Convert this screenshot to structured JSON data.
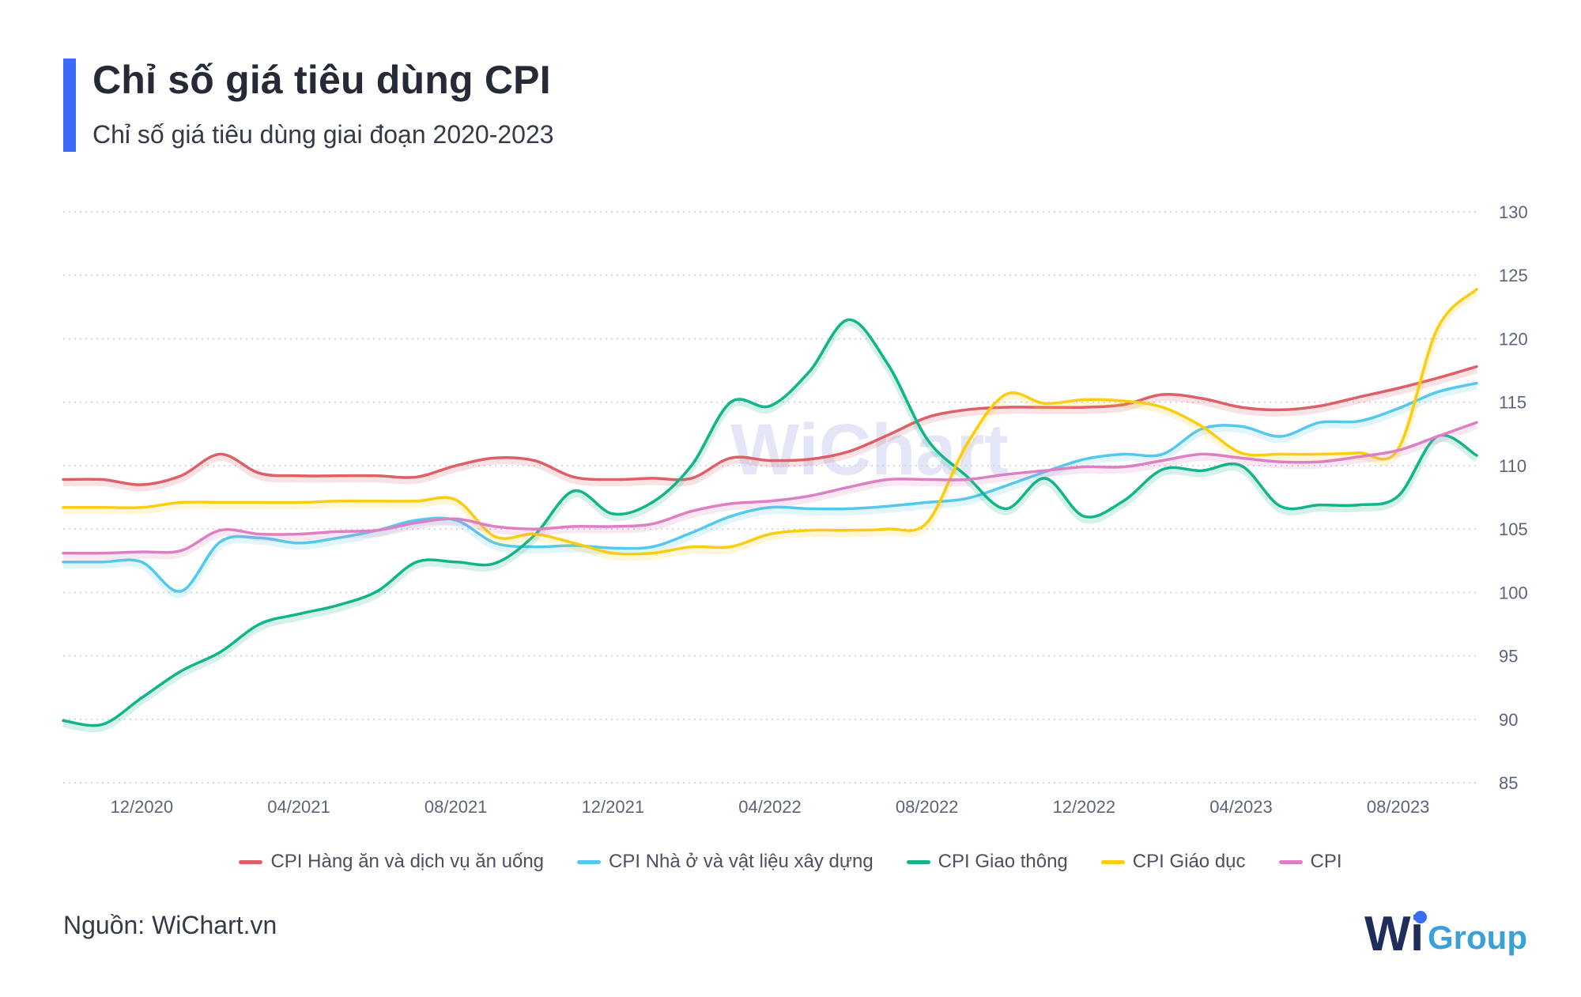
{
  "header": {
    "title": "Chỉ số giá tiêu dùng CPI",
    "subtitle": "Chỉ số giá tiêu dùng giai đoạn 2020-2023"
  },
  "footer": {
    "source": "Nguồn: WiChart.vn",
    "logo_text_a": "Wi",
    "logo_text_b": "Group",
    "watermark": "WiChart"
  },
  "colors": {
    "accent": "#3b6cf6",
    "series": [
      "#de5f66",
      "#54c8ee",
      "#12b48a",
      "#fbcd12",
      "#e07ec3"
    ],
    "grid": "#c9ccd3",
    "axis_text": "#5b6478"
  },
  "chart_data": {
    "type": "line",
    "title": "Chỉ số giá tiêu dùng CPI",
    "subtitle": "Chỉ số giá tiêu dùng giai đoạn 2020-2023",
    "xlabel": "",
    "ylabel": "",
    "y_axis_position": "right",
    "ylim": [
      85,
      130
    ],
    "yticks": [
      85,
      90,
      95,
      100,
      105,
      110,
      115,
      120,
      125,
      130
    ],
    "grid": true,
    "legend_position": "bottom",
    "x_tick_labels": [
      "12/2020",
      "04/2021",
      "08/2021",
      "12/2021",
      "04/2022",
      "08/2022",
      "12/2022",
      "04/2023",
      "08/2023"
    ],
    "x_tick_indices": [
      2,
      6,
      10,
      14,
      18,
      22,
      26,
      30,
      34
    ],
    "x": [
      "10/2020",
      "11/2020",
      "12/2020",
      "01/2021",
      "02/2021",
      "03/2021",
      "04/2021",
      "05/2021",
      "06/2021",
      "07/2021",
      "08/2021",
      "09/2021",
      "10/2021",
      "11/2021",
      "12/2021",
      "01/2022",
      "02/2022",
      "03/2022",
      "04/2022",
      "05/2022",
      "06/2022",
      "07/2022",
      "08/2022",
      "09/2022",
      "10/2022",
      "11/2022",
      "12/2022",
      "01/2023",
      "02/2023",
      "03/2023",
      "04/2023",
      "05/2023",
      "06/2023",
      "07/2023",
      "08/2023",
      "09/2023",
      "10/2023"
    ],
    "series": [
      {
        "name": "CPI Hàng ăn và dịch vụ ăn uống",
        "values": [
          108.9,
          108.9,
          108.5,
          109.2,
          110.9,
          109.4,
          109.2,
          109.2,
          109.2,
          109.1,
          110.0,
          110.6,
          110.4,
          109.1,
          108.9,
          109.0,
          109.0,
          110.6,
          110.4,
          110.5,
          111.1,
          112.4,
          113.8,
          114.4,
          114.6,
          114.6,
          114.6,
          114.8,
          115.6,
          115.3,
          114.6,
          114.4,
          114.7,
          115.4,
          116.1,
          116.9,
          117.8
        ]
      },
      {
        "name": "CPI Nhà ở và vật liệu xây dựng",
        "values": [
          102.4,
          102.4,
          102.4,
          100.1,
          104.0,
          104.3,
          103.9,
          104.3,
          104.9,
          105.7,
          105.7,
          103.9,
          103.6,
          103.7,
          103.5,
          103.6,
          104.7,
          106.0,
          106.7,
          106.6,
          106.6,
          106.8,
          107.1,
          107.4,
          108.4,
          109.5,
          110.5,
          110.9,
          110.9,
          112.9,
          113.1,
          112.3,
          113.4,
          113.5,
          114.5,
          115.8,
          116.5
        ]
      },
      {
        "name": "CPI Giao thông",
        "values": [
          89.9,
          89.6,
          91.7,
          93.8,
          95.3,
          97.5,
          98.3,
          99.0,
          100.1,
          102.4,
          102.4,
          102.3,
          104.5,
          108.0,
          106.2,
          107.1,
          110.0,
          115.0,
          114.7,
          117.4,
          121.5,
          118.0,
          112.1,
          109.2,
          106.6,
          109.0,
          106.0,
          107.2,
          109.7,
          109.6,
          110.0,
          106.8,
          106.9,
          106.9,
          107.6,
          112.3,
          110.8
        ]
      },
      {
        "name": "CPI Giáo dục",
        "values": [
          106.7,
          106.7,
          106.7,
          107.1,
          107.1,
          107.1,
          107.1,
          107.2,
          107.2,
          107.2,
          107.3,
          104.4,
          104.6,
          103.9,
          103.1,
          103.1,
          103.6,
          103.6,
          104.6,
          104.9,
          104.9,
          105.0,
          105.5,
          111.6,
          115.6,
          114.9,
          115.2,
          115.1,
          114.6,
          113.1,
          111.0,
          110.9,
          110.9,
          111.0,
          111.3,
          120.8,
          123.9
        ]
      },
      {
        "name": "CPI",
        "values": [
          103.1,
          103.1,
          103.2,
          103.3,
          104.9,
          104.6,
          104.6,
          104.8,
          104.9,
          105.5,
          105.8,
          105.2,
          105.0,
          105.2,
          105.2,
          105.4,
          106.4,
          107.0,
          107.2,
          107.6,
          108.3,
          108.9,
          108.9,
          108.9,
          109.3,
          109.6,
          109.9,
          109.9,
          110.4,
          110.9,
          110.6,
          110.3,
          110.3,
          110.7,
          111.2,
          112.3,
          113.4
        ]
      }
    ]
  }
}
